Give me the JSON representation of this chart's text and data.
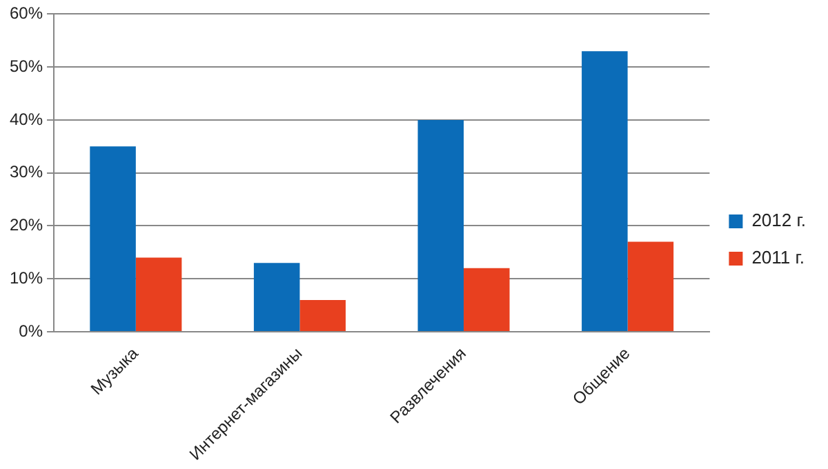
{
  "chart_data": {
    "type": "bar",
    "categories": [
      "Музыка",
      "Интернет-магазины",
      "Развлечения",
      "Общение"
    ],
    "series": [
      {
        "name": "2012 г.",
        "color": "#0b6cb8",
        "values": [
          35,
          13,
          40,
          53
        ]
      },
      {
        "name": "2011 г.",
        "color": "#e8401f",
        "values": [
          14,
          6,
          12,
          17
        ]
      }
    ],
    "ylim": [
      0,
      60
    ],
    "yticks": [
      {
        "value": 0,
        "label": "0%"
      },
      {
        "value": 10,
        "label": "10%"
      },
      {
        "value": 20,
        "label": "20%"
      },
      {
        "value": 30,
        "label": "30%"
      },
      {
        "value": 40,
        "label": "40%"
      },
      {
        "value": 50,
        "label": "50%"
      },
      {
        "value": 60,
        "label": "60%"
      }
    ],
    "grid": "y",
    "legend": "right"
  }
}
